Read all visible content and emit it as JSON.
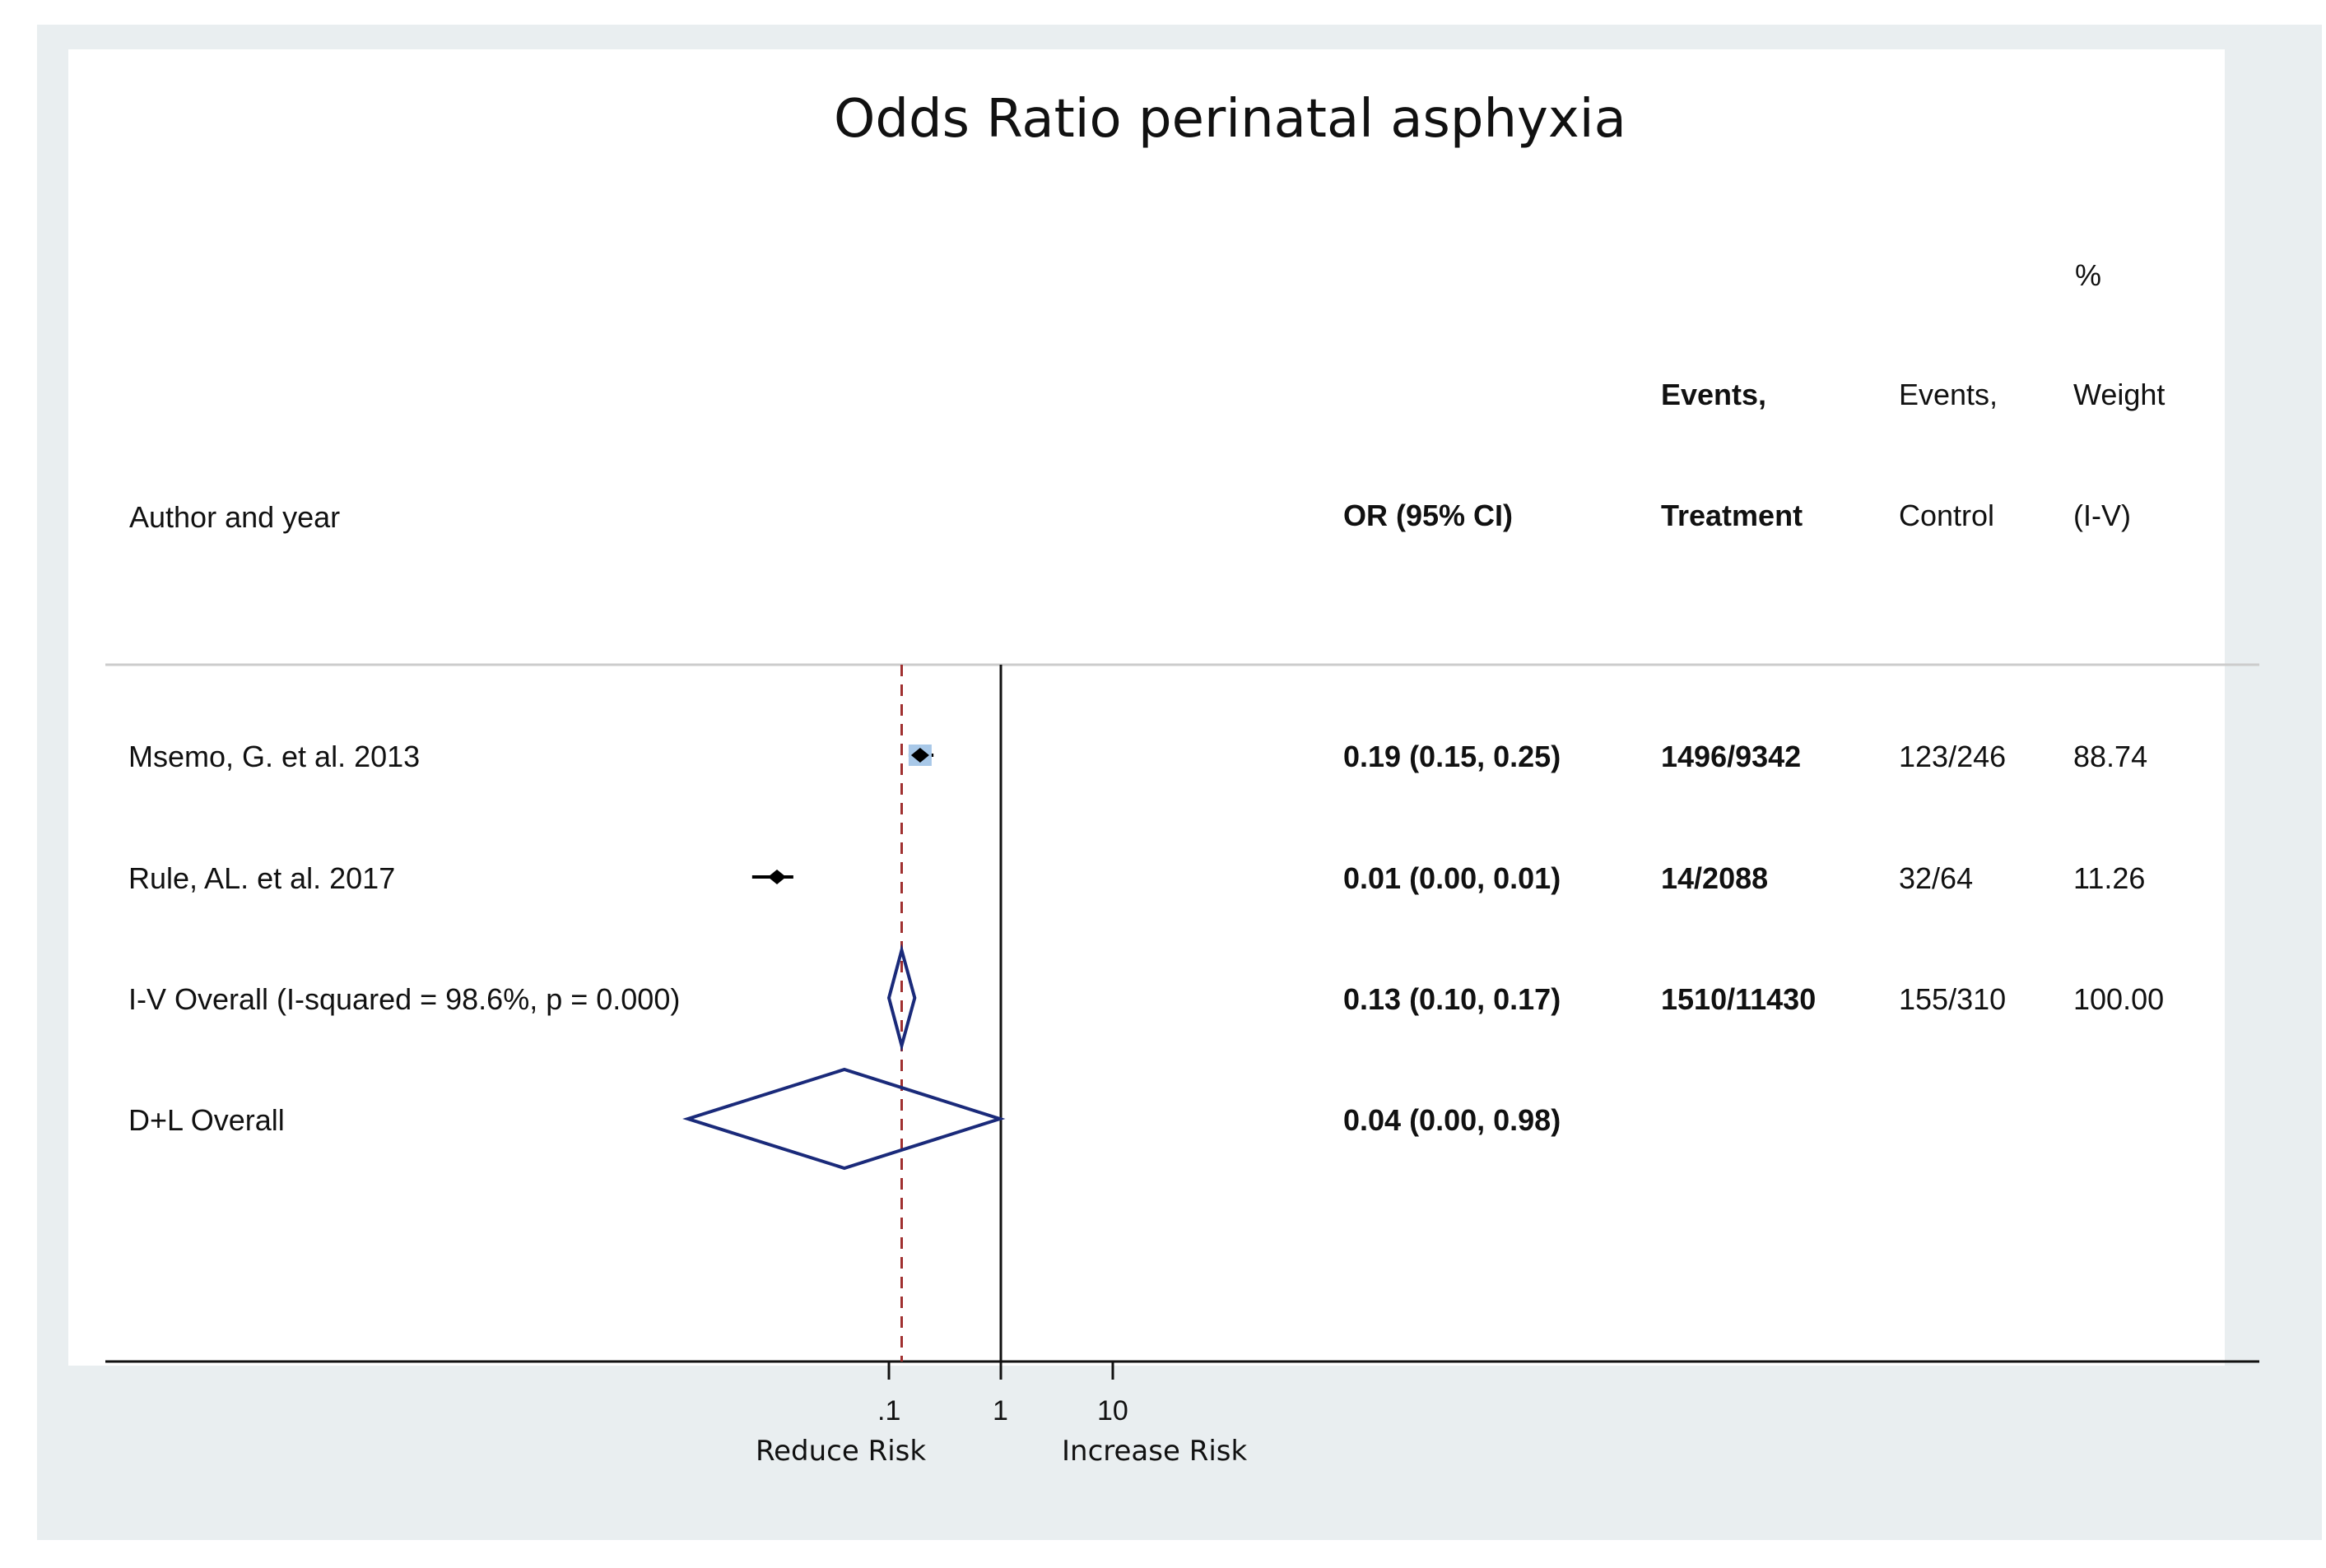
{
  "chart_data": {
    "type": "forest",
    "title": "Odds Ratio perinatal asphyxia",
    "columns": {
      "study": "Author  and year",
      "effect": "OR (95% CI)",
      "treatment": [
        "Events,",
        "Treatment"
      ],
      "control": [
        "Events,",
        "Control"
      ],
      "weight": [
        "%",
        "Weight",
        "(I-V)"
      ]
    },
    "x_scale": "log",
    "xlim": [
      0.0005,
      20
    ],
    "x_ticks": [
      {
        "value": 0.1,
        "label": ".1"
      },
      {
        "value": 1,
        "label": "1"
      },
      {
        "value": 10,
        "label": "10"
      }
    ],
    "x_annotations": {
      "left": "Reduce Risk",
      "right": "Increase Risk"
    },
    "null_line": 1,
    "overall_line": 0.13,
    "studies": [
      {
        "label": "Msemo, G. et al. 2013",
        "or": 0.19,
        "lo": 0.15,
        "hi": 0.25,
        "or_text": "0.19 (0.15, 0.25)",
        "treatment": "1496/9342",
        "control": "123/246",
        "weight": "88.74",
        "shape": "point"
      },
      {
        "label": "Rule, AL. et al. 2017",
        "or": 0.01,
        "lo": 0.006,
        "hi": 0.014,
        "or_text": "0.01 (0.00, 0.01)",
        "treatment": "14/2088",
        "control": "32/64",
        "weight": "11.26",
        "shape": "point"
      },
      {
        "label": "I-V Overall  (I-squared = 98.6%, p = 0.000)",
        "or": 0.13,
        "lo": 0.1,
        "hi": 0.17,
        "or_text": "0.13 (0.10, 0.17)",
        "treatment": "1510/11430",
        "control": "155/310",
        "weight": "100.00",
        "shape": "diamond"
      },
      {
        "label": "D+L Overall",
        "or": 0.04,
        "lo": 0.0016,
        "hi": 0.98,
        "or_text": "0.04 (0.00, 0.98)",
        "treatment": "",
        "control": "",
        "weight": "",
        "shape": "diamond"
      }
    ],
    "colors": {
      "point": "#000000",
      "weight_box": "#a8c8e8",
      "diamond": "#1a2a7a",
      "overall_line": "#a03030"
    }
  }
}
